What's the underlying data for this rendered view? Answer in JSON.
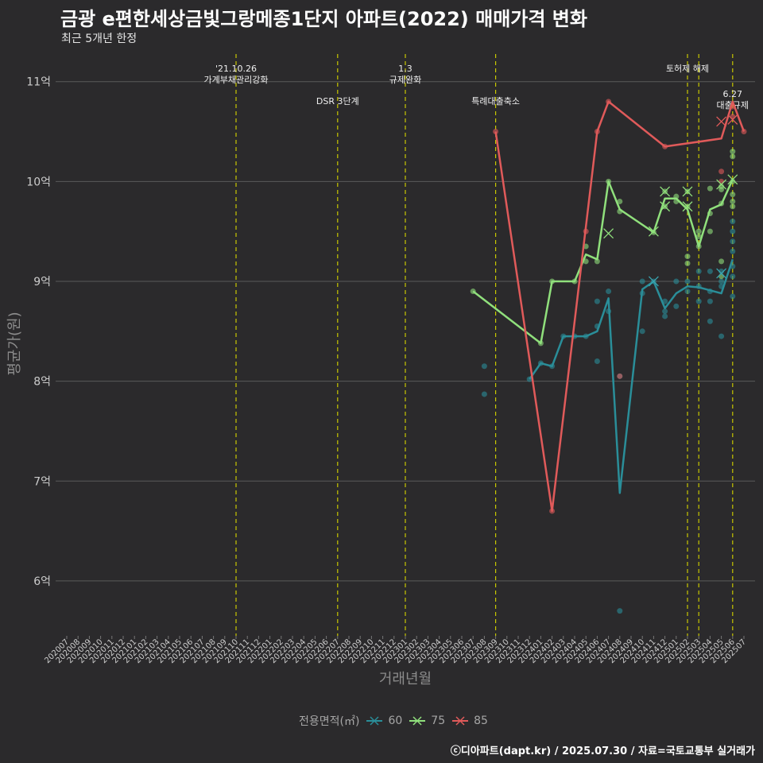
{
  "title": "금광 e편한세상금빛그랑메종1단지 아파트(2022) 매매가격 변화",
  "subtitle": "최근 5개년 한정",
  "caption": "ⓒ디아파트(dapt.kr) / 2025.07.30 / 자료=국토교통부 실거래가",
  "legend": {
    "title": "전용면적(㎡)"
  },
  "colors": {
    "background": "#2b2a2c",
    "grid": "#5a5a5a",
    "vline": "#c8c800",
    "axis_text": "#cccccc",
    "axis_title": "#8c8c8c"
  },
  "chart_data": {
    "type": "line",
    "xlabel": "거래년월",
    "ylabel": "평균가(원)",
    "ylim": [
      5.45,
      11.3
    ],
    "x_ticks": [
      "202007",
      "202008",
      "202009",
      "202010",
      "202011",
      "202012",
      "202101",
      "202102",
      "202103",
      "202104",
      "202105",
      "202106",
      "202107",
      "202108",
      "202109",
      "202110",
      "202111",
      "202112",
      "202201",
      "202202",
      "202203",
      "202204",
      "202205",
      "202206",
      "202207",
      "202208",
      "202209",
      "202210",
      "202211",
      "202212",
      "202301",
      "202302",
      "202303",
      "202304",
      "202305",
      "202306",
      "202307",
      "202308",
      "202309",
      "202310",
      "202311",
      "202312",
      "202401",
      "202402",
      "202403",
      "202404",
      "202405",
      "202406",
      "202407",
      "202408",
      "202409",
      "202410",
      "202411",
      "202412",
      "202501",
      "202502",
      "202503",
      "202504",
      "202505",
      "202506",
      "202507"
    ],
    "y_ticks": [
      {
        "value": 6,
        "label": "6억"
      },
      {
        "value": 7,
        "label": "7억"
      },
      {
        "value": 8,
        "label": "8억"
      },
      {
        "value": 9,
        "label": "9억"
      },
      {
        "value": 10,
        "label": "10억"
      },
      {
        "value": 11,
        "label": "11억"
      }
    ],
    "grid": true,
    "legend_position": "bottom",
    "events": [
      {
        "x": "202110",
        "label": [
          "'21.10.26",
          "가계부채관리강화"
        ],
        "row": 0
      },
      {
        "x": "202207",
        "label": [
          "DSR 3단계"
        ],
        "row": 1
      },
      {
        "x": "202301",
        "label": [
          "1.3",
          "규제완화"
        ],
        "row": 0
      },
      {
        "x": "202309",
        "label": [
          "특례대출축소"
        ],
        "row": 1
      },
      {
        "x": "202502",
        "label": [
          "토허제 해제"
        ],
        "row": 0
      },
      {
        "x": "202503",
        "label": [],
        "row": 0
      },
      {
        "x": "202506",
        "label": [
          "6.27",
          "대출규제"
        ],
        "row": 2
      }
    ],
    "series": [
      {
        "name": "60",
        "color": "#2a8e99",
        "line": [
          [
            "202312",
            8.02
          ],
          [
            "202401",
            8.18
          ],
          [
            "202402",
            8.15
          ],
          [
            "202403",
            8.45
          ],
          [
            "202405",
            8.45
          ],
          [
            "202406",
            8.5
          ],
          [
            "202407",
            8.83
          ],
          [
            "202408",
            6.88
          ],
          [
            "202410",
            8.92
          ],
          [
            "202411",
            9.0
          ],
          [
            "202412",
            8.73
          ],
          [
            "202501",
            8.88
          ],
          [
            "202502",
            8.95
          ],
          [
            "202503",
            8.94
          ],
          [
            "202505",
            8.88
          ],
          [
            "202506",
            9.22
          ]
        ],
        "points": [
          [
            "202308",
            8.15
          ],
          [
            "202308",
            7.87
          ],
          [
            "202312",
            8.02
          ],
          [
            "202401",
            8.18
          ],
          [
            "202402",
            8.15
          ],
          [
            "202403",
            8.45
          ],
          [
            "202404",
            8.45
          ],
          [
            "202405",
            8.45
          ],
          [
            "202406",
            8.55
          ],
          [
            "202406",
            8.2
          ],
          [
            "202406",
            8.8
          ],
          [
            "202407",
            8.9
          ],
          [
            "202407",
            8.7
          ],
          [
            "202408",
            8.05
          ],
          [
            "202408",
            5.7
          ],
          [
            "202410",
            9.0
          ],
          [
            "202410",
            8.5
          ],
          [
            "202410",
            8.88
          ],
          [
            "202411",
            9.0
          ],
          [
            "202412",
            8.65
          ],
          [
            "202412",
            8.8
          ],
          [
            "202412",
            8.7
          ],
          [
            "202501",
            9.0
          ],
          [
            "202501",
            8.75
          ],
          [
            "202502",
            9.0
          ],
          [
            "202502",
            8.9
          ],
          [
            "202503",
            8.8
          ],
          [
            "202503",
            8.95
          ],
          [
            "202503",
            9.1
          ],
          [
            "202504",
            8.6
          ],
          [
            "202504",
            8.8
          ],
          [
            "202504",
            9.1
          ],
          [
            "202504",
            8.9
          ],
          [
            "202505",
            9.1
          ],
          [
            "202505",
            8.45
          ],
          [
            "202505",
            9.0
          ],
          [
            "202505",
            8.95
          ],
          [
            "202506",
            9.6
          ],
          [
            "202506",
            9.4
          ],
          [
            "202506",
            9.3
          ],
          [
            "202506",
            9.15
          ],
          [
            "202506",
            8.85
          ],
          [
            "202506",
            9.05
          ],
          [
            "202506",
            9.5
          ]
        ],
        "markers": [
          [
            "202411",
            9.0
          ],
          [
            "202505",
            9.08
          ]
        ]
      },
      {
        "name": "75",
        "color": "#90e07c",
        "line": [
          [
            "202307",
            8.9
          ],
          [
            "202401",
            8.38
          ],
          [
            "202402",
            9.0
          ],
          [
            "202404",
            9.0
          ],
          [
            "202405",
            9.27
          ],
          [
            "202406",
            9.22
          ],
          [
            "202407",
            10.0
          ],
          [
            "202408",
            9.72
          ],
          [
            "202411",
            9.49
          ],
          [
            "202412",
            9.83
          ],
          [
            "202501",
            9.83
          ],
          [
            "202502",
            9.72
          ],
          [
            "202503",
            9.35
          ],
          [
            "202504",
            9.72
          ],
          [
            "202505",
            9.77
          ],
          [
            "202506",
            10.02
          ]
        ],
        "points": [
          [
            "202307",
            8.9
          ],
          [
            "202401",
            8.38
          ],
          [
            "202402",
            9.0
          ],
          [
            "202404",
            9.0
          ],
          [
            "202405",
            9.35
          ],
          [
            "202405",
            9.2
          ],
          [
            "202406",
            9.2
          ],
          [
            "202407",
            10.0
          ],
          [
            "202408",
            9.8
          ],
          [
            "202408",
            9.7
          ],
          [
            "202411",
            9.49
          ],
          [
            "202412",
            9.9
          ],
          [
            "202412",
            9.75
          ],
          [
            "202501",
            9.85
          ],
          [
            "202501",
            9.8
          ],
          [
            "202502",
            9.9
          ],
          [
            "202502",
            9.75
          ],
          [
            "202502",
            9.25
          ],
          [
            "202502",
            9.18
          ],
          [
            "202503",
            9.5
          ],
          [
            "202503",
            9.45
          ],
          [
            "202503",
            9.35
          ],
          [
            "202504",
            9.93
          ],
          [
            "202504",
            9.68
          ],
          [
            "202504",
            9.5
          ],
          [
            "202505",
            9.92
          ],
          [
            "202505",
            9.95
          ],
          [
            "202505",
            9.78
          ],
          [
            "202505",
            9.2
          ],
          [
            "202505",
            9.05
          ],
          [
            "202506",
            10.3
          ],
          [
            "202506",
            10.25
          ],
          [
            "202506",
            10.0
          ],
          [
            "202506",
            9.87
          ],
          [
            "202506",
            9.8
          ],
          [
            "202506",
            9.75
          ]
        ],
        "markers": [
          [
            "202407",
            9.48
          ],
          [
            "202411",
            9.5
          ],
          [
            "202412",
            9.9
          ],
          [
            "202412",
            9.75
          ],
          [
            "202502",
            9.9
          ],
          [
            "202502",
            9.75
          ],
          [
            "202505",
            9.97
          ],
          [
            "202506",
            10.02
          ]
        ]
      },
      {
        "name": "85",
        "color": "#e05a5a",
        "line": [
          [
            "202309",
            10.5
          ],
          [
            "202402",
            6.7
          ],
          [
            "202406",
            10.5
          ],
          [
            "202407",
            10.8
          ],
          [
            "202412",
            10.35
          ],
          [
            "202505",
            10.43
          ],
          [
            "202506",
            10.8
          ],
          [
            "202507",
            10.5
          ]
        ],
        "points": [
          [
            "202309",
            10.5
          ],
          [
            "202402",
            6.7
          ],
          [
            "202405",
            9.5
          ],
          [
            "202406",
            10.5
          ],
          [
            "202407",
            10.8
          ],
          [
            "202408",
            8.05
          ],
          [
            "202412",
            10.35
          ],
          [
            "202505",
            10.1
          ],
          [
            "202505",
            10.0
          ],
          [
            "202506",
            10.75
          ],
          [
            "202506",
            10.65
          ],
          [
            "202507",
            10.5
          ]
        ],
        "markers": [
          [
            "202505",
            10.6
          ],
          [
            "202506",
            10.62
          ]
        ]
      }
    ]
  }
}
